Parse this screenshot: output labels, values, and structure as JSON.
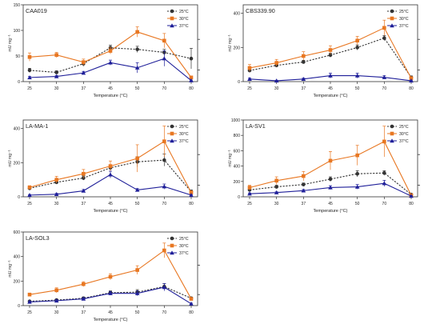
{
  "chart_data": [
    {
      "type": "line",
      "title": "CAA019",
      "xlabel": "Temperature (°C)",
      "ylabel": "mU mg⁻¹",
      "categories": [
        "25",
        "30",
        "37",
        "45",
        "50",
        "70",
        "80"
      ],
      "ylim": [
        0,
        150
      ],
      "yticks": [
        0,
        50,
        100,
        150
      ],
      "legend": "top-right",
      "series": [
        {
          "name": "25°C",
          "color": "#333333",
          "dashed": true,
          "marker": "circle",
          "values": [
            22,
            18,
            35,
            66,
            63,
            57,
            45
          ],
          "errors": [
            4,
            3,
            5,
            5,
            6,
            6,
            20
          ]
        },
        {
          "name": "30°C",
          "color": "#e87722",
          "dashed": false,
          "marker": "square",
          "values": [
            48,
            52,
            38,
            60,
            97,
            80,
            8
          ],
          "errors": [
            8,
            5,
            6,
            6,
            10,
            14,
            3
          ]
        },
        {
          "name": "37°C",
          "color": "#1f1f99",
          "dashed": false,
          "marker": "triangle",
          "values": [
            8,
            10,
            17,
            37,
            27,
            45,
            2
          ],
          "errors": [
            2,
            2,
            3,
            5,
            10,
            15,
            1
          ]
        }
      ]
    },
    {
      "type": "line",
      "title": "CBS339.90",
      "xlabel": "Temperature (°C)",
      "ylabel": "mU mg⁻¹",
      "categories": [
        "25",
        "30",
        "37",
        "45",
        "50",
        "70",
        "80"
      ],
      "ylim": [
        0,
        450
      ],
      "yticks": [
        0,
        200,
        400
      ],
      "legend": "top-right",
      "series": [
        {
          "name": "25°C",
          "color": "#333333",
          "dashed": true,
          "marker": "circle",
          "values": [
            65,
            95,
            115,
            155,
            200,
            255,
            25
          ],
          "errors": [
            8,
            10,
            10,
            12,
            15,
            15,
            8
          ]
        },
        {
          "name": "30°C",
          "color": "#e87722",
          "dashed": false,
          "marker": "square",
          "values": [
            80,
            110,
            150,
            185,
            240,
            315,
            20
          ],
          "errors": [
            20,
            20,
            25,
            25,
            25,
            45,
            8
          ]
        },
        {
          "name": "37°C",
          "color": "#1f1f99",
          "dashed": false,
          "marker": "triangle",
          "values": [
            15,
            5,
            15,
            35,
            35,
            25,
            5
          ],
          "errors": [
            5,
            3,
            5,
            15,
            15,
            10,
            3
          ]
        }
      ]
    },
    {
      "type": "line",
      "title": "LA-MA-1",
      "xlabel": "Temperature (°C)",
      "ylabel": "mU mg⁻¹",
      "categories": [
        "25",
        "30",
        "37",
        "45",
        "50",
        "70",
        "80"
      ],
      "ylim": [
        0,
        450
      ],
      "yticks": [
        0,
        200,
        400
      ],
      "legend": "top-right",
      "series": [
        {
          "name": "25°C",
          "color": "#333333",
          "dashed": true,
          "marker": "circle",
          "values": [
            50,
            85,
            110,
            170,
            205,
            215,
            30
          ],
          "errors": [
            8,
            10,
            12,
            15,
            30,
            35,
            10
          ]
        },
        {
          "name": "30°C",
          "color": "#e87722",
          "dashed": false,
          "marker": "square",
          "values": [
            55,
            100,
            135,
            180,
            225,
            325,
            25
          ],
          "errors": [
            10,
            20,
            25,
            30,
            80,
            90,
            10
          ]
        },
        {
          "name": "37°C",
          "color": "#1f1f99",
          "dashed": false,
          "marker": "triangle",
          "values": [
            10,
            15,
            35,
            130,
            40,
            60,
            10
          ],
          "errors": [
            3,
            5,
            8,
            20,
            8,
            15,
            3
          ]
        }
      ]
    },
    {
      "type": "line",
      "title": "LA-SV1",
      "xlabel": "Temperature (°C)",
      "ylabel": "mU mg⁻¹",
      "categories": [
        "25",
        "30",
        "37",
        "45",
        "50",
        "70",
        "80"
      ],
      "ylim": [
        0,
        1000
      ],
      "yticks": [
        0,
        200,
        400,
        600,
        800,
        1000
      ],
      "legend": "top-right",
      "series": [
        {
          "name": "25°C",
          "color": "#333333",
          "dashed": true,
          "marker": "circle",
          "values": [
            90,
            130,
            160,
            230,
            300,
            310,
            30
          ],
          "errors": [
            15,
            20,
            20,
            30,
            40,
            30,
            10
          ]
        },
        {
          "name": "30°C",
          "color": "#e87722",
          "dashed": false,
          "marker": "square",
          "values": [
            120,
            210,
            270,
            470,
            540,
            720,
            20
          ],
          "errors": [
            30,
            50,
            60,
            120,
            130,
            200,
            10
          ]
        },
        {
          "name": "37°C",
          "color": "#1f1f99",
          "dashed": false,
          "marker": "triangle",
          "values": [
            40,
            55,
            80,
            120,
            130,
            175,
            10
          ],
          "errors": [
            10,
            10,
            15,
            25,
            30,
            40,
            5
          ]
        }
      ]
    },
    {
      "type": "line",
      "title": "LA-SOL3",
      "xlabel": "Temperature (°C)",
      "ylabel": "mU mg⁻¹",
      "categories": [
        "25",
        "30",
        "37",
        "45",
        "50",
        "70",
        "80"
      ],
      "ylim": [
        0,
        600
      ],
      "yticks": [
        0,
        200,
        400,
        600
      ],
      "legend": "top-right",
      "series": [
        {
          "name": "25°C",
          "color": "#333333",
          "dashed": true,
          "marker": "circle",
          "values": [
            35,
            45,
            60,
            105,
            110,
            155,
            60
          ],
          "errors": [
            5,
            8,
            10,
            15,
            20,
            25,
            10
          ]
        },
        {
          "name": "30°C",
          "color": "#e87722",
          "dashed": false,
          "marker": "square",
          "values": [
            90,
            125,
            175,
            235,
            290,
            450,
            55
          ],
          "errors": [
            10,
            20,
            20,
            25,
            35,
            60,
            10
          ]
        },
        {
          "name": "37°C",
          "color": "#1f1f99",
          "dashed": false,
          "marker": "triangle",
          "values": [
            30,
            40,
            55,
            100,
            100,
            150,
            15
          ],
          "errors": [
            5,
            8,
            10,
            15,
            20,
            30,
            5
          ]
        }
      ]
    }
  ]
}
